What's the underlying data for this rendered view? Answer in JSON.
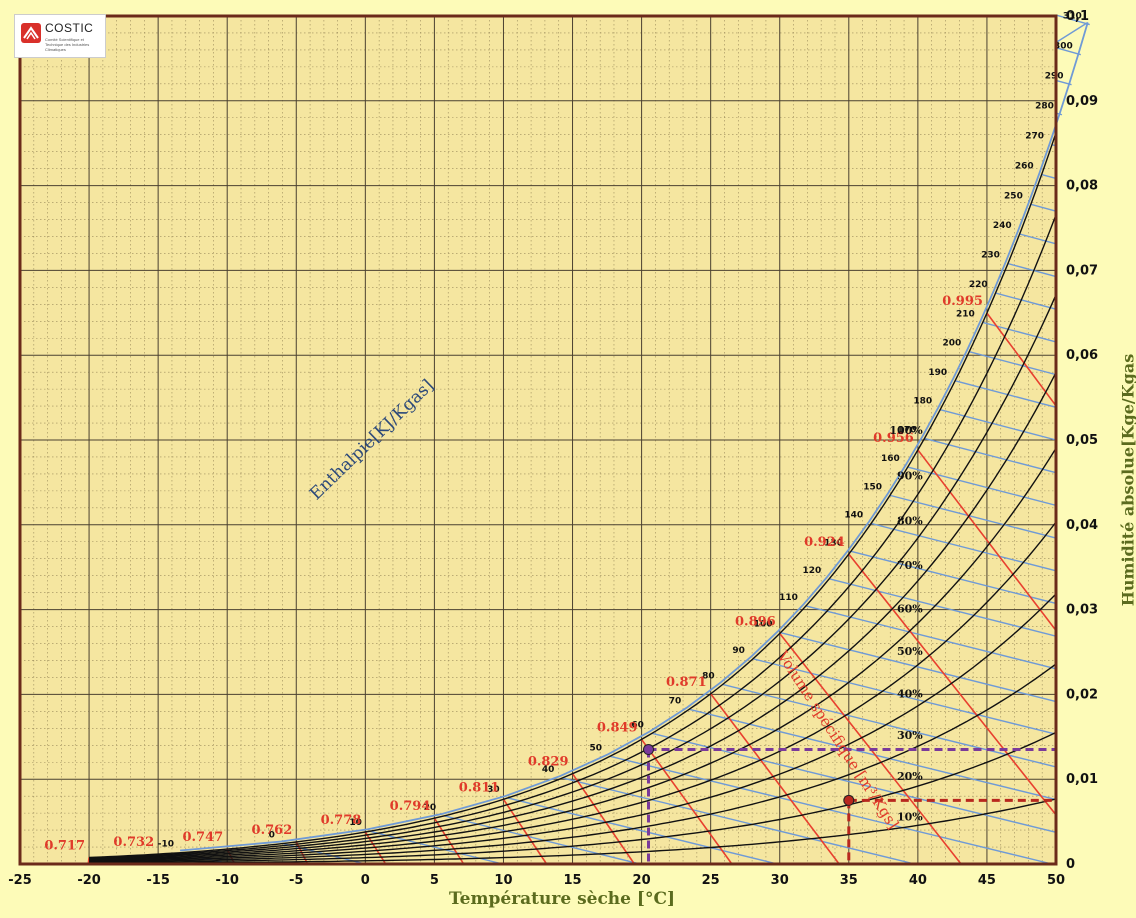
{
  "logo": {
    "name": "COSTIC",
    "subtitle": "Comité Scientifique et Technique des Industries Climatiques"
  },
  "chart_data": {
    "type": "line",
    "title": "",
    "xlabel": "Température sèche [°C]",
    "ylabel": "Humidité absolue[Kge/Kgas",
    "xlim": [
      -25,
      50
    ],
    "ylim": [
      0,
      0.1
    ],
    "x_ticks": [
      -25,
      -20,
      -15,
      -10,
      -5,
      0,
      5,
      10,
      15,
      20,
      25,
      30,
      35,
      40,
      45,
      50
    ],
    "x_tick_labels": [
      "-25",
      "-20",
      "-15",
      "-10",
      "-5",
      "0",
      "5",
      "10",
      "15",
      "20",
      "25",
      "30",
      "35",
      "40",
      "45",
      "50"
    ],
    "y_ticks": [
      0,
      0.01,
      0.02,
      0.03,
      0.04,
      0.05,
      0.06,
      0.07,
      0.08,
      0.09,
      0.1
    ],
    "y_tick_labels": [
      "0",
      "0,01",
      "0,02",
      "0,03",
      "0,04",
      "0,05",
      "0,06",
      "0,07",
      "0,08",
      "0,09",
      "0,1"
    ],
    "grid": true,
    "relative_humidity": {
      "labels": [
        "100%",
        "90%",
        "80%",
        "70%",
        "60%",
        "50%",
        "40%",
        "30%",
        "20%",
        "10%"
      ],
      "values": [
        100,
        90,
        80,
        70,
        60,
        50,
        40,
        30,
        20,
        10
      ]
    },
    "enthalpy": {
      "title": "Enthalpie[KJ/Kgas]",
      "labels": [
        "-10",
        "0",
        "10",
        "20",
        "30",
        "40",
        "50",
        "60",
        "70",
        "80",
        "90",
        "100",
        "110",
        "120",
        "130",
        "140",
        "150",
        "160",
        "170",
        "180",
        "190",
        "200",
        "210",
        "220",
        "230",
        "240",
        "250",
        "260",
        "270",
        "280",
        "290",
        "300",
        "310"
      ],
      "values": [
        -10,
        0,
        10,
        20,
        30,
        40,
        50,
        60,
        70,
        80,
        90,
        100,
        110,
        120,
        130,
        140,
        150,
        160,
        170,
        180,
        190,
        200,
        210,
        220,
        230,
        240,
        250,
        260,
        270,
        280,
        290,
        300,
        310
      ]
    },
    "specific_volume": {
      "title": "Volume spécifique [m³/Kgs]",
      "labels": [
        "0.717",
        "0.732",
        "0.747",
        "0.762",
        "0.778",
        "0.794",
        "0.811",
        "0.829",
        "0.849",
        "0.871",
        "0.896",
        "0.924",
        "0.956",
        "0.995"
      ],
      "values": [
        0.717,
        0.732,
        0.747,
        0.762,
        0.778,
        0.794,
        0.811,
        0.829,
        0.849,
        0.871,
        0.896,
        0.924,
        0.956,
        0.995
      ],
      "t_sat": [
        -20,
        -15,
        -10,
        -5,
        0,
        5,
        10,
        15,
        20,
        25,
        30,
        35,
        40,
        45
      ]
    },
    "points": [
      {
        "name": "point-purple",
        "x": 20.5,
        "y": 0.0135,
        "color": "#7a3a9a"
      },
      {
        "name": "point-red",
        "x": 35,
        "y": 0.0075,
        "color": "#b8281e"
      }
    ],
    "colors": {
      "background": "#f5e6a0",
      "rh_curve": "#111111",
      "enthalpy_line": "#6f9ad6",
      "volume_line": "#e8402f",
      "volume_label": "#e03a2a",
      "axis_title": "#5b6b1e",
      "border": "#6b2a1a"
    }
  }
}
